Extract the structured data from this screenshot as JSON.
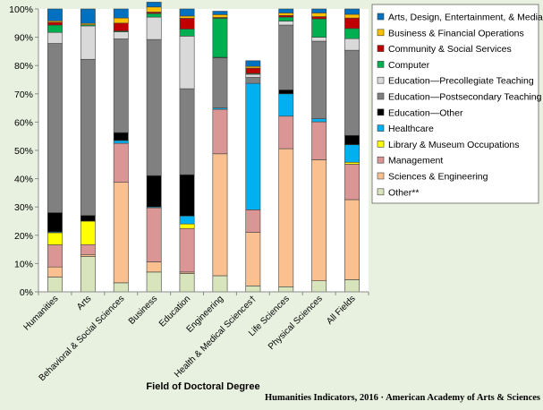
{
  "chart_data": {
    "type": "bar",
    "stacked": true,
    "xlabel": "Field of Doctoral Degree",
    "ylabel": "",
    "ylim": [
      0,
      100
    ],
    "y_ticks": [
      "0%",
      "10%",
      "20%",
      "30%",
      "40%",
      "50%",
      "60%",
      "70%",
      "80%",
      "90%",
      "100%"
    ],
    "grid": false,
    "legend_position": "right",
    "categories": [
      "Humanities",
      "Arts",
      "Behavioral & Social Sciences",
      "Business",
      "Education",
      "Engineering",
      "Health & Medical Sciences†",
      "Life Sciences",
      "Physical Sciences",
      "All Fields"
    ],
    "series": [
      {
        "name": "Other**",
        "color": "#d8e4bc",
        "values": [
          5.2,
          12.5,
          3.2,
          7.0,
          6.5,
          5.7,
          2.1,
          1.8,
          3.9,
          4.3
        ]
      },
      {
        "name": "Sciences & Engineering",
        "color": "#fac090",
        "values": [
          3.6,
          0.7,
          35.5,
          3.6,
          0.5,
          43.1,
          18.9,
          48.8,
          42.8,
          28.3
        ]
      },
      {
        "name": "Management",
        "color": "#da9694",
        "values": [
          7.8,
          3.5,
          13.8,
          19.1,
          15.4,
          15.7,
          8.0,
          11.5,
          13.4,
          12.5
        ]
      },
      {
        "name": "Library & Museum Occupations",
        "color": "#ffff00",
        "values": [
          4.3,
          8.3,
          0.0,
          0.0,
          1.6,
          0.0,
          0.0,
          0.0,
          0.0,
          0.7
        ]
      },
      {
        "name": "Healthcare",
        "color": "#00b0f0",
        "values": [
          0.3,
          0.0,
          1.0,
          0.3,
          2.8,
          0.5,
          44.7,
          7.9,
          1.1,
          6.2
        ]
      },
      {
        "name": "Education—Other",
        "color": "#000000",
        "values": [
          6.8,
          2.0,
          2.8,
          11.1,
          14.6,
          0.0,
          0.0,
          1.4,
          0.0,
          3.3
        ]
      },
      {
        "name": "Education—Postsecondary Teaching",
        "color": "#808080",
        "values": [
          59.8,
          55.2,
          33.1,
          48.1,
          30.4,
          17.7,
          2.1,
          22.9,
          27.4,
          30.1
        ]
      },
      {
        "name": "Education—Precollegiate Teaching",
        "color": "#d9d9d9",
        "values": [
          3.9,
          11.8,
          2.5,
          7.9,
          18.6,
          0.2,
          1.1,
          1.4,
          1.4,
          4.1
        ]
      },
      {
        "name": "Computer",
        "color": "#00b050",
        "values": [
          2.6,
          0.4,
          0.3,
          1.3,
          2.5,
          13.8,
          0.3,
          1.4,
          6.5,
          3.6
        ]
      },
      {
        "name": "Community & Social Services",
        "color": "#c00000",
        "values": [
          1.0,
          0.0,
          2.8,
          0.5,
          3.8,
          0.3,
          1.9,
          0.6,
          0.8,
          3.7
        ]
      },
      {
        "name": "Business & Financial Operations",
        "color": "#ffc000",
        "values": [
          0.5,
          0.5,
          1.8,
          1.8,
          0.8,
          1.0,
          0.6,
          0.9,
          1.3,
          1.3
        ]
      },
      {
        "name": "Arts, Design, Entertainment, & Media",
        "color": "#0070c0",
        "values": [
          4.2,
          5.1,
          3.2,
          1.7,
          2.5,
          1.2,
          2.0,
          1.4,
          1.4,
          1.9
        ]
      }
    ],
    "legend_order": [
      "Arts, Design, Entertainment, & Media",
      "Business & Financial Operations",
      "Community & Social Services",
      "Computer",
      "Education—Precollegiate Teaching",
      "Education—Postsecondary Teaching",
      "Education—Other",
      "Healthcare",
      "Library & Museum Occupations",
      "Management",
      "Sciences & Engineering",
      "Other**"
    ]
  },
  "footer": {
    "source": "Humanities Indicators, 2016 · American Academy of Arts & Sciences"
  }
}
